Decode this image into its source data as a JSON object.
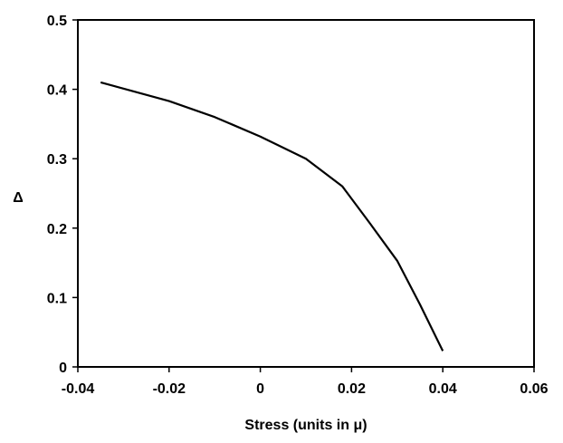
{
  "chart_data": {
    "type": "line",
    "title": "",
    "xlabel": "Stress (units in μ)",
    "ylabel": "Δ",
    "xlim": [
      -0.04,
      0.06
    ],
    "ylim": [
      0,
      0.5
    ],
    "grid": false,
    "x_ticks": [
      "-0.04",
      "-0.02",
      "0",
      "0.02",
      "0.04",
      "0.06"
    ],
    "y_ticks": [
      "0",
      "0.1",
      "0.2",
      "0.3",
      "0.4",
      "0.5"
    ],
    "series": [
      {
        "color": "#000000",
        "x": [
          -0.035,
          -0.02,
          -0.01,
          0.0,
          0.01,
          0.018,
          0.024,
          0.03,
          0.035,
          0.04
        ],
        "y": [
          0.41,
          0.383,
          0.36,
          0.332,
          0.3,
          0.26,
          0.207,
          0.153,
          0.09,
          0.023
        ]
      }
    ]
  }
}
